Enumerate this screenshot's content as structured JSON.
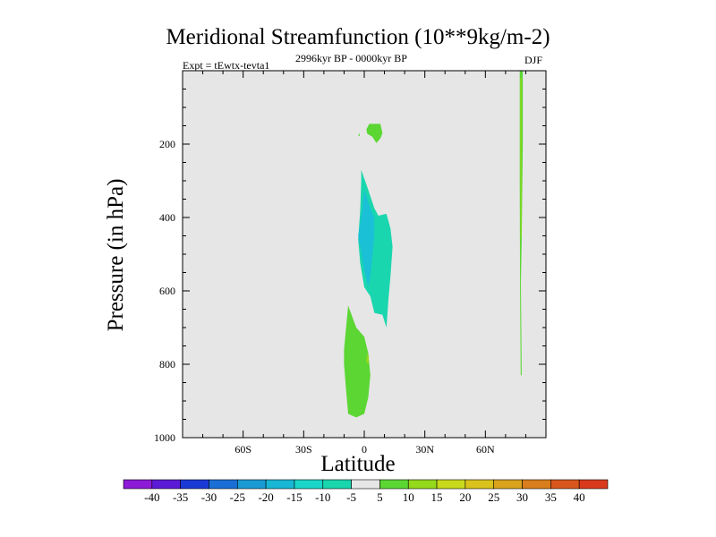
{
  "chart_data": {
    "type": "contour",
    "title": "Meridional Streamfunction (10**9kg/m-2)",
    "subtitle": "2996kyr BP - 0000kyr BP",
    "experiment": "Expt = tEwtx-tevta1",
    "season": "DJF",
    "xlabel": "Latitude",
    "ylabel": "Pressure (in hPa)",
    "xlim": [
      -90,
      90
    ],
    "ylim": [
      1000,
      0
    ],
    "x_ticks": [
      {
        "value": -60,
        "label": "60S"
      },
      {
        "value": -30,
        "label": "30S"
      },
      {
        "value": 0,
        "label": "0"
      },
      {
        "value": 30,
        "label": "30N"
      },
      {
        "value": 60,
        "label": "60N"
      }
    ],
    "y_ticks": [
      {
        "value": 200,
        "label": "200"
      },
      {
        "value": 400,
        "label": "400"
      },
      {
        "value": 600,
        "label": "600"
      },
      {
        "value": 800,
        "label": "800"
      },
      {
        "value": 1000,
        "label": "1000"
      }
    ],
    "background_color": "#e6e6e6",
    "regions": [
      {
        "name": "upper-green-cell",
        "level": 5,
        "color": "#5bd633",
        "points": [
          [
            2.5,
            145
          ],
          [
            8,
            145
          ],
          [
            9,
            170
          ],
          [
            8,
            185
          ],
          [
            6,
            197
          ],
          [
            4,
            180
          ],
          [
            1.5,
            172
          ],
          [
            1,
            160
          ]
        ]
      },
      {
        "name": "small-dot-cell",
        "level": 5,
        "color": "#5bd633",
        "points": [
          [
            -2.8,
            172
          ],
          [
            -2.3,
            172
          ],
          [
            -2.3,
            178
          ],
          [
            -2.8,
            178
          ]
        ]
      },
      {
        "name": "mid-cyan-cell",
        "level": -5,
        "color": "#1ad6ae",
        "points": [
          [
            -1.5,
            270
          ],
          [
            2,
            325
          ],
          [
            5,
            375
          ],
          [
            7,
            395
          ],
          [
            11,
            390
          ],
          [
            13,
            430
          ],
          [
            14,
            480
          ],
          [
            13,
            560
          ],
          [
            12,
            620
          ],
          [
            11,
            700
          ],
          [
            9,
            665
          ],
          [
            5,
            660
          ],
          [
            3,
            615
          ],
          [
            0,
            590
          ],
          [
            -2,
            525
          ],
          [
            -3,
            460
          ],
          [
            -2,
            380
          ],
          [
            -1.5,
            300
          ]
        ]
      },
      {
        "name": "mid-blue-cell",
        "level": -10,
        "color": "#1ac0d6",
        "points": [
          [
            0,
            325
          ],
          [
            3,
            375
          ],
          [
            5,
            400
          ],
          [
            5,
            450
          ],
          [
            4,
            510
          ],
          [
            3,
            560
          ],
          [
            2,
            590
          ],
          [
            0,
            545
          ],
          [
            -2,
            480
          ],
          [
            -3,
            450
          ],
          [
            -1,
            380
          ]
        ]
      },
      {
        "name": "lower-green-cell",
        "level": 5,
        "color": "#5bd633",
        "points": [
          [
            -8,
            640
          ],
          [
            -4,
            700
          ],
          [
            0,
            725
          ],
          [
            2,
            770
          ],
          [
            3,
            830
          ],
          [
            2,
            890
          ],
          [
            0,
            935
          ],
          [
            -4,
            945
          ],
          [
            -8,
            935
          ],
          [
            -9,
            870
          ],
          [
            -10,
            800
          ],
          [
            -10,
            760
          ],
          [
            -9,
            700
          ]
        ]
      },
      {
        "name": "lower-yellow-spot",
        "level": 10,
        "color": "#95d91c",
        "points": [
          [
            1.5,
            770
          ],
          [
            2.3,
            780
          ],
          [
            2,
            800
          ],
          [
            1,
            795
          ]
        ]
      },
      {
        "name": "polar-green-strip",
        "level": 5,
        "color": "#5bd633",
        "points": [
          [
            77,
            0
          ],
          [
            78.5,
            0
          ],
          [
            78.5,
            200
          ],
          [
            78,
            460
          ],
          [
            77.6,
            580
          ],
          [
            78,
            830
          ],
          [
            77.5,
            830
          ],
          [
            77.2,
            600
          ],
          [
            77,
            300
          ]
        ]
      },
      {
        "name": "polar-yellow-strip",
        "level": 10,
        "color": "#95d91c",
        "points": [
          [
            77.3,
            20
          ],
          [
            77.9,
            20
          ],
          [
            77.9,
            450
          ],
          [
            77.5,
            460
          ],
          [
            77.3,
            200
          ]
        ]
      }
    ],
    "colorbar": {
      "levels": [
        "-40",
        "-35",
        "-30",
        "-25",
        "-20",
        "-15",
        "-10",
        "-5",
        "5",
        "10",
        "15",
        "20",
        "25",
        "30",
        "35",
        "40"
      ],
      "colors": [
        "#8c1ad6",
        "#5b1ad6",
        "#1a3ad6",
        "#1a6fd6",
        "#1a9bd6",
        "#1ab6d6",
        "#1ad6c8",
        "#1ad6ae",
        "#e6e6e6",
        "#5bd633",
        "#95d91c",
        "#c8d91c",
        "#d9c21c",
        "#d9a31c",
        "#d97e1c",
        "#d9571c",
        "#d93a1c"
      ]
    }
  }
}
